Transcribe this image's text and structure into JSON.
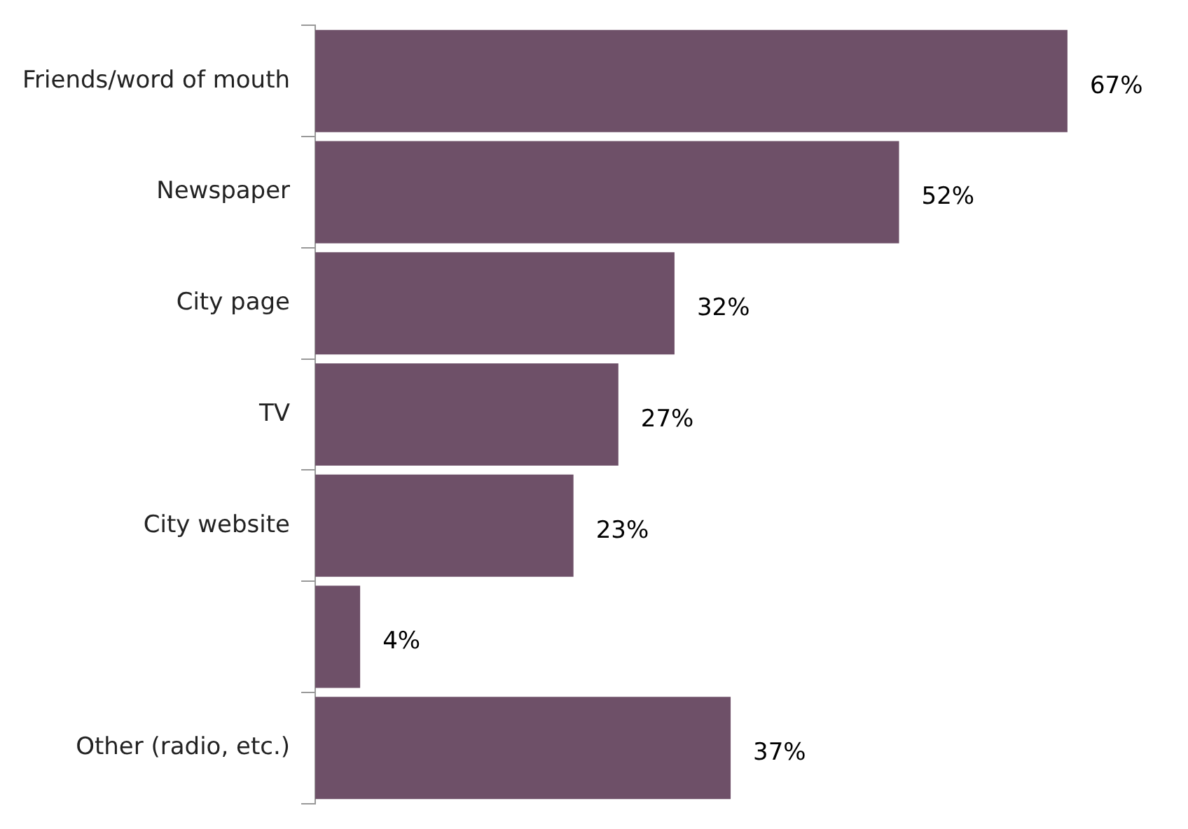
{
  "chart_data": {
    "type": "bar",
    "orientation": "horizontal",
    "categories": [
      "Friends/word of mouth",
      "Newspaper",
      "City page",
      "TV",
      "City website",
      null,
      "Other (radio, etc.)"
    ],
    "values": [
      67,
      52,
      32,
      27,
      23,
      4,
      37
    ],
    "value_labels": [
      "67%",
      "52%",
      "32%",
      "27%",
      "23%",
      "4%",
      "37%"
    ],
    "color": "#6e5068"
  }
}
